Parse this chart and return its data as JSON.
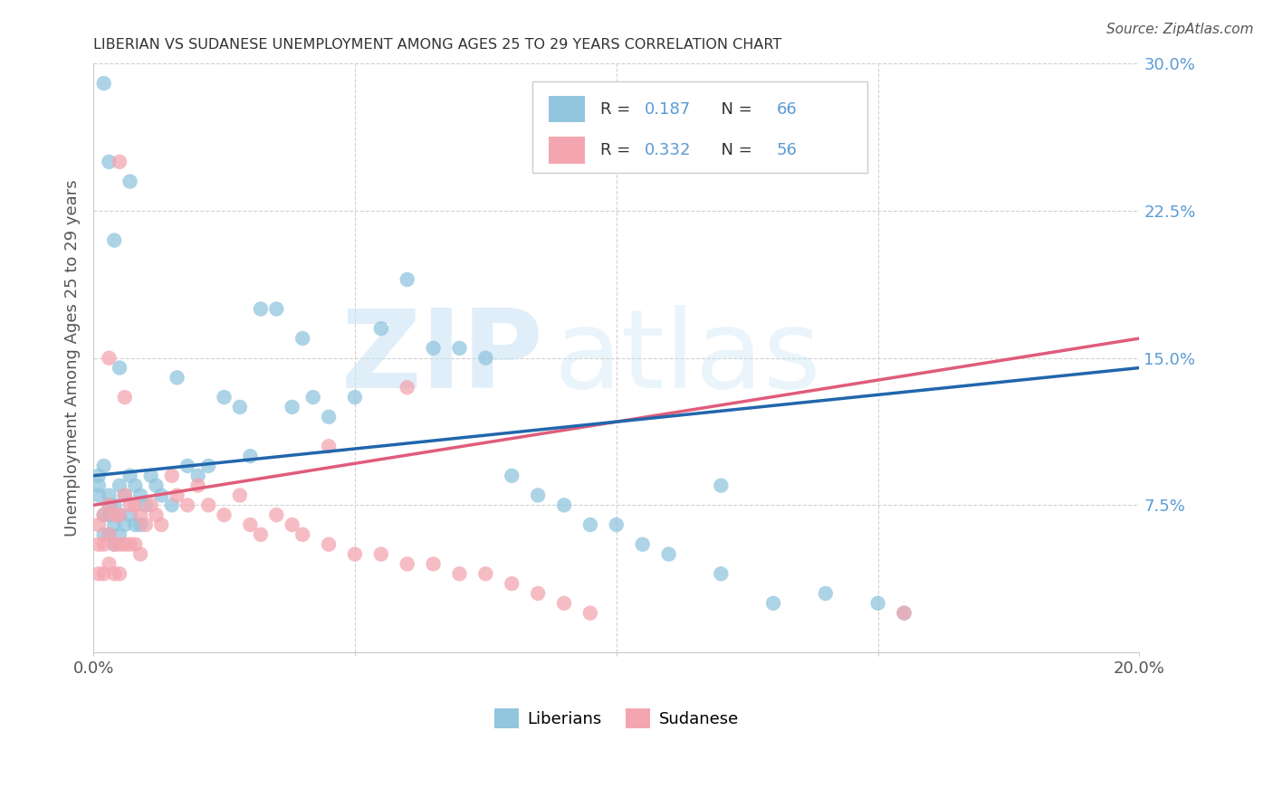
{
  "title": "LIBERIAN VS SUDANESE UNEMPLOYMENT AMONG AGES 25 TO 29 YEARS CORRELATION CHART",
  "source": "Source: ZipAtlas.com",
  "ylabel": "Unemployment Among Ages 25 to 29 years",
  "xlim": [
    0.0,
    0.2
  ],
  "ylim": [
    0.0,
    0.3
  ],
  "xtick_positions": [
    0.0,
    0.05,
    0.1,
    0.15,
    0.2
  ],
  "xtick_labels": [
    "0.0%",
    "",
    "",
    "",
    "20.0%"
  ],
  "ytick_positions": [
    0.0,
    0.075,
    0.15,
    0.225,
    0.3
  ],
  "ytick_labels": [
    "",
    "7.5%",
    "15.0%",
    "22.5%",
    "30.0%"
  ],
  "liberian_color": "#92c5de",
  "sudanese_color": "#f4a6b0",
  "liberian_line_color": "#2166ac",
  "sudanese_line_color": "#e05c7a",
  "liberian_line_y0": 0.09,
  "liberian_line_y1": 0.145,
  "sudanese_line_y0": 0.075,
  "sudanese_line_y1": 0.16,
  "R_liberian": "0.187",
  "N_liberian": "66",
  "R_sudanese": "0.332",
  "N_sudanese": "56",
  "background_color": "#ffffff",
  "watermark_zip": "ZIP",
  "watermark_atlas": "atlas",
  "legend_color": "#5b9bd5",
  "liberian_x": [
    0.001,
    0.001,
    0.001,
    0.002,
    0.002,
    0.002,
    0.003,
    0.003,
    0.003,
    0.003,
    0.004,
    0.004,
    0.004,
    0.005,
    0.005,
    0.005,
    0.006,
    0.006,
    0.007,
    0.007,
    0.008,
    0.008,
    0.009,
    0.009,
    0.01,
    0.011,
    0.012,
    0.013,
    0.015,
    0.016,
    0.018,
    0.02,
    0.022,
    0.025,
    0.028,
    0.03,
    0.032,
    0.035,
    0.038,
    0.04,
    0.042,
    0.045,
    0.05,
    0.055,
    0.06,
    0.065,
    0.07,
    0.075,
    0.08,
    0.085,
    0.09,
    0.095,
    0.1,
    0.105,
    0.11,
    0.12,
    0.13,
    0.14,
    0.15,
    0.155,
    0.002,
    0.003,
    0.004,
    0.005,
    0.007,
    0.12
  ],
  "liberian_y": [
    0.09,
    0.085,
    0.08,
    0.095,
    0.07,
    0.06,
    0.08,
    0.075,
    0.07,
    0.06,
    0.075,
    0.065,
    0.055,
    0.085,
    0.07,
    0.06,
    0.08,
    0.065,
    0.09,
    0.07,
    0.085,
    0.065,
    0.08,
    0.065,
    0.075,
    0.09,
    0.085,
    0.08,
    0.075,
    0.14,
    0.095,
    0.09,
    0.095,
    0.13,
    0.125,
    0.1,
    0.175,
    0.175,
    0.125,
    0.16,
    0.13,
    0.12,
    0.13,
    0.165,
    0.19,
    0.155,
    0.155,
    0.15,
    0.09,
    0.08,
    0.075,
    0.065,
    0.065,
    0.055,
    0.05,
    0.04,
    0.025,
    0.03,
    0.025,
    0.02,
    0.29,
    0.25,
    0.21,
    0.145,
    0.24,
    0.085
  ],
  "sudanese_x": [
    0.001,
    0.001,
    0.001,
    0.002,
    0.002,
    0.002,
    0.003,
    0.003,
    0.003,
    0.004,
    0.004,
    0.004,
    0.005,
    0.005,
    0.005,
    0.006,
    0.006,
    0.007,
    0.007,
    0.008,
    0.008,
    0.009,
    0.009,
    0.01,
    0.011,
    0.012,
    0.013,
    0.015,
    0.016,
    0.018,
    0.02,
    0.022,
    0.025,
    0.028,
    0.03,
    0.032,
    0.035,
    0.038,
    0.04,
    0.045,
    0.05,
    0.055,
    0.06,
    0.065,
    0.07,
    0.075,
    0.08,
    0.085,
    0.09,
    0.095,
    0.003,
    0.005,
    0.006,
    0.045,
    0.06,
    0.155
  ],
  "sudanese_y": [
    0.065,
    0.055,
    0.04,
    0.07,
    0.055,
    0.04,
    0.075,
    0.06,
    0.045,
    0.07,
    0.055,
    0.04,
    0.07,
    0.055,
    0.04,
    0.08,
    0.055,
    0.075,
    0.055,
    0.075,
    0.055,
    0.07,
    0.05,
    0.065,
    0.075,
    0.07,
    0.065,
    0.09,
    0.08,
    0.075,
    0.085,
    0.075,
    0.07,
    0.08,
    0.065,
    0.06,
    0.07,
    0.065,
    0.06,
    0.055,
    0.05,
    0.05,
    0.045,
    0.045,
    0.04,
    0.04,
    0.035,
    0.03,
    0.025,
    0.02,
    0.15,
    0.25,
    0.13,
    0.105,
    0.135,
    0.02
  ]
}
